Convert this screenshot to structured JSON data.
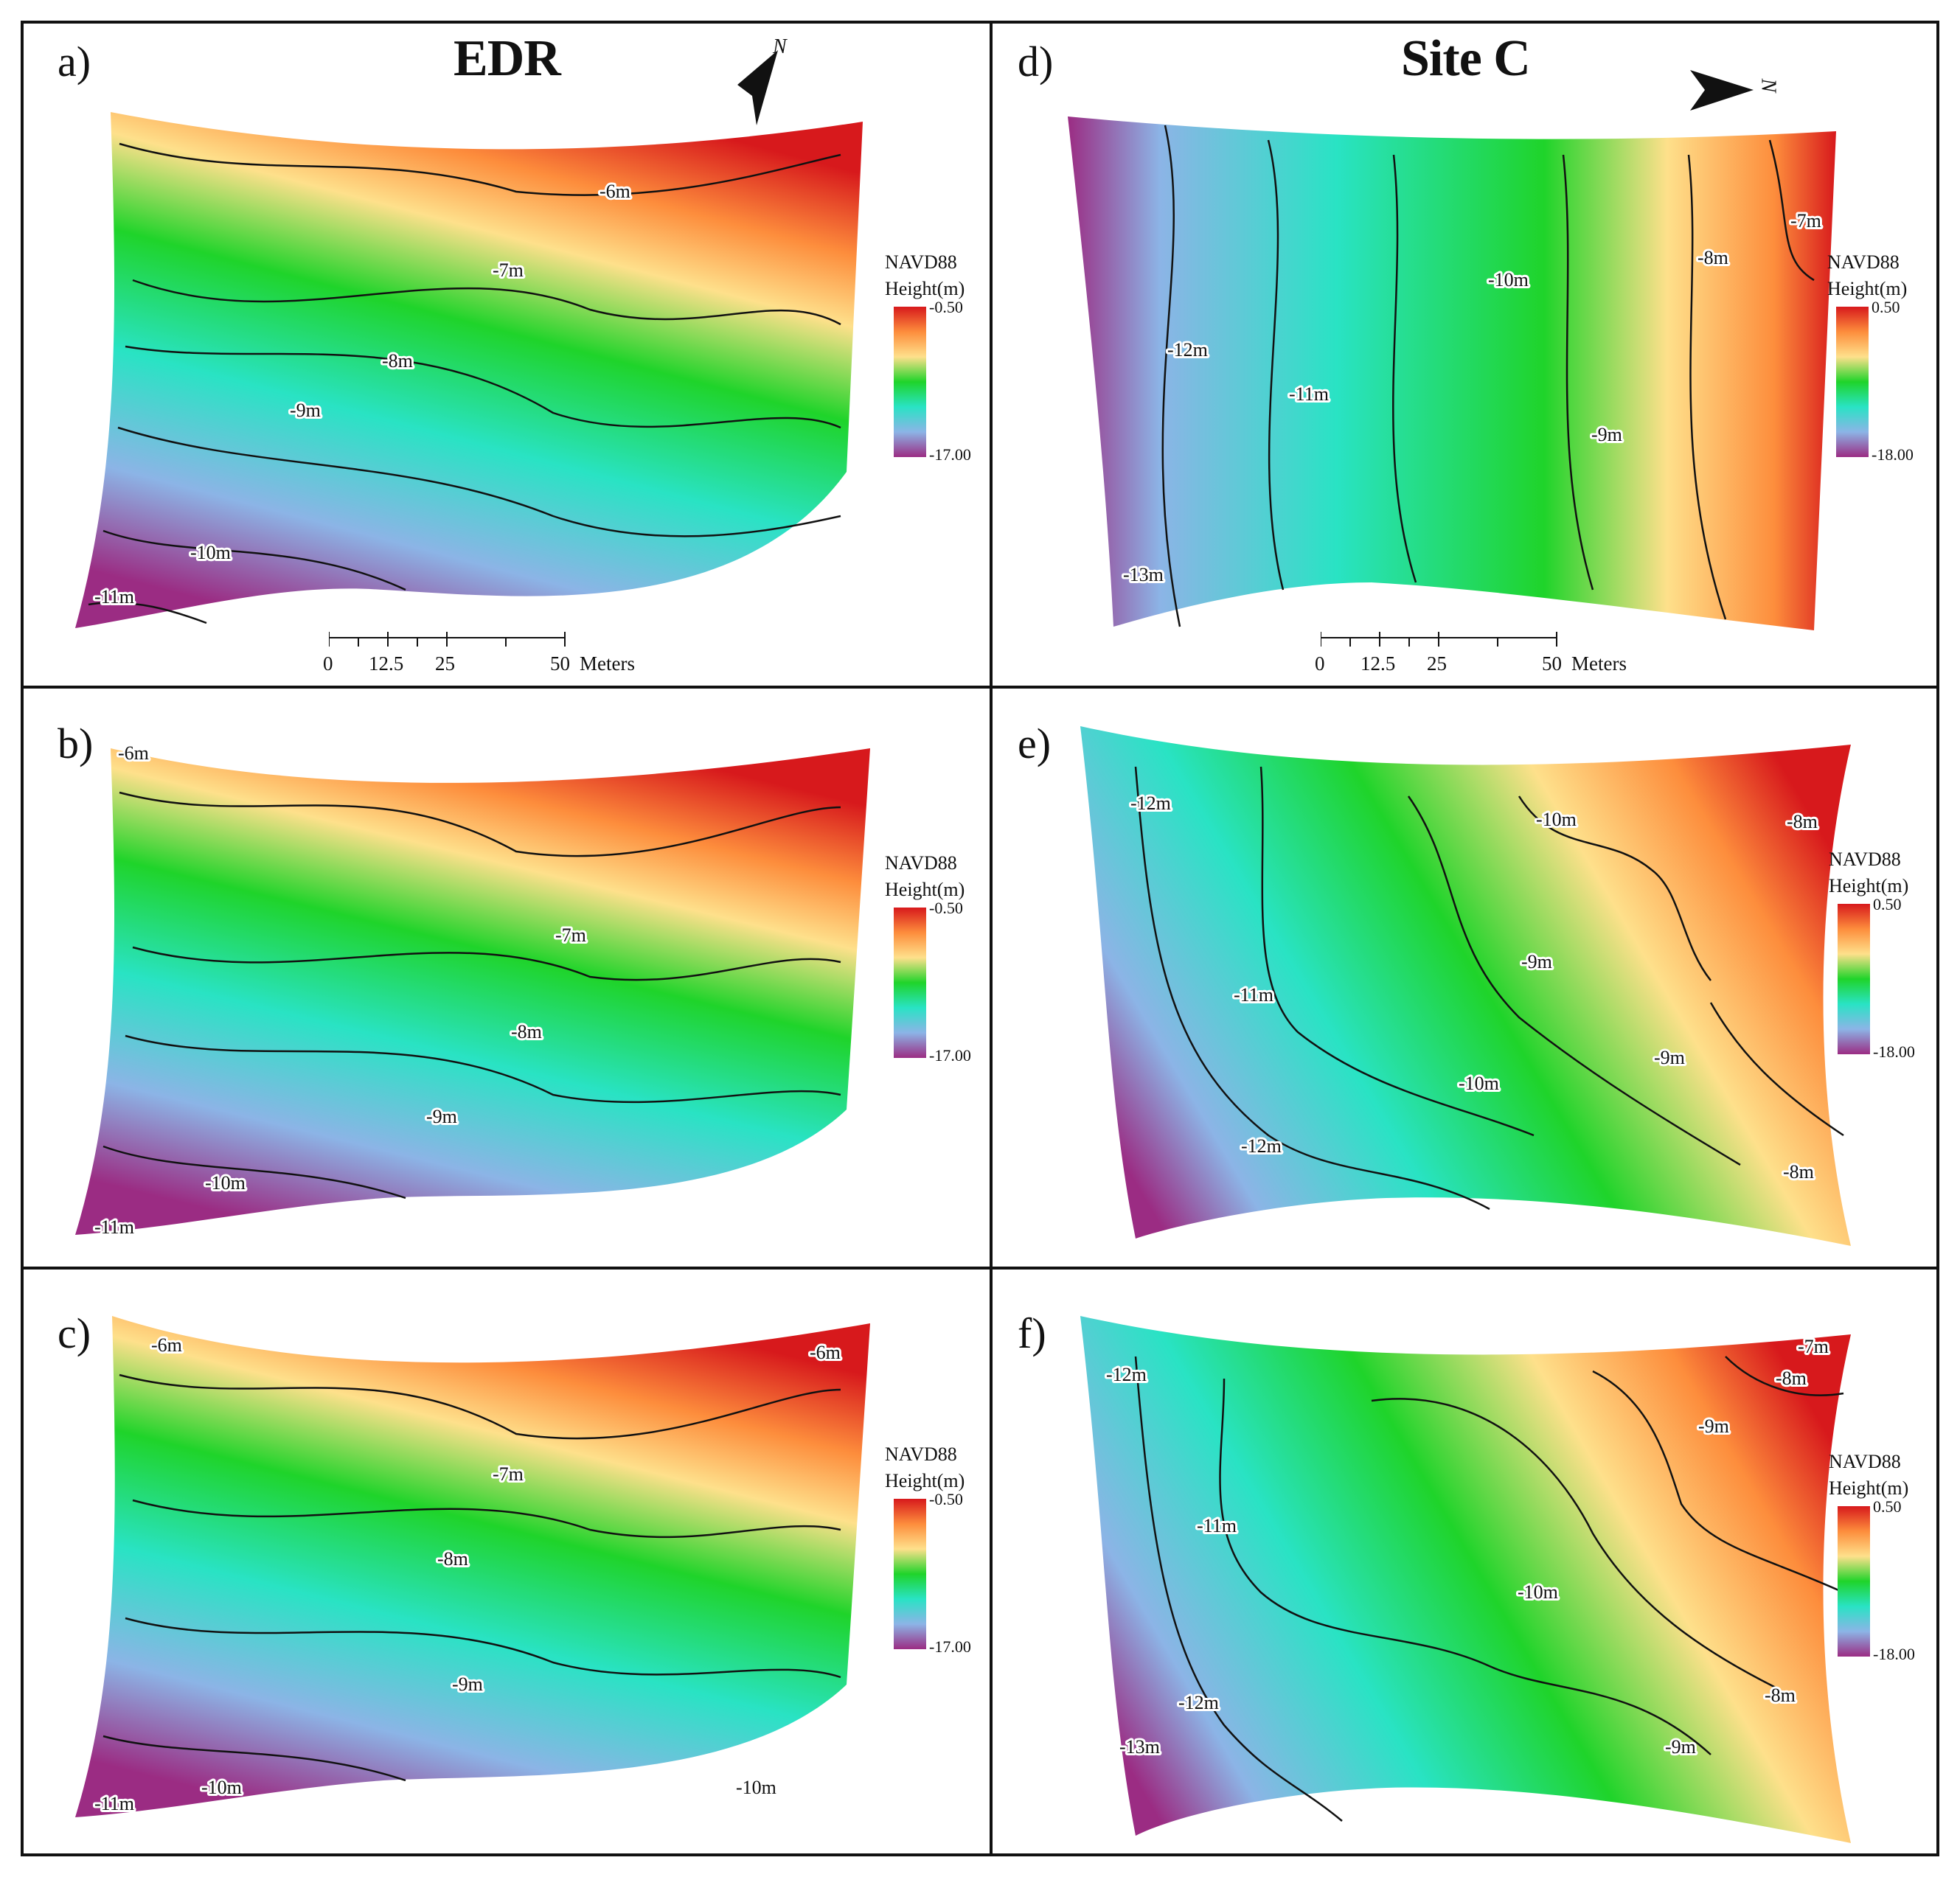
{
  "figure": {
    "columns": [
      {
        "title": "EDR"
      },
      {
        "title": "Site C"
      }
    ],
    "panels": [
      {
        "letter": "a)",
        "site": "EDR",
        "legend": {
          "title_line1": "NAVD88",
          "title_line2": "Height(m)",
          "max": "-0.50",
          "min": "-17.00"
        },
        "contour_labels": [
          "-6m",
          "-7m",
          "-8m",
          "-9m",
          "-10m",
          "-11m"
        ],
        "scale_bar": {
          "ticks": [
            "0",
            "12.5",
            "25",
            "50"
          ],
          "unit": "Meters"
        },
        "north_arrow": {
          "label": "N",
          "icon": "north-arrow-icon"
        }
      },
      {
        "letter": "b)",
        "site": "EDR",
        "legend": {
          "title_line1": "NAVD88",
          "title_line2": "Height(m)",
          "max": "-0.50",
          "min": "-17.00"
        },
        "contour_labels": [
          "-6m",
          "-7m",
          "-8m",
          "-9m",
          "-10m",
          "-11m"
        ]
      },
      {
        "letter": "c)",
        "site": "EDR",
        "legend": {
          "title_line1": "NAVD88",
          "title_line2": "Height(m)",
          "max": "-0.50",
          "min": "-17.00"
        },
        "contour_labels": [
          "-6m",
          "-6m",
          "-7m",
          "-8m",
          "-9m",
          "-10m",
          "-10m",
          "-11m"
        ]
      },
      {
        "letter": "d)",
        "site": "Site C",
        "legend": {
          "title_line1": "NAVD88",
          "title_line2": "Height(m)",
          "max": "0.50",
          "min": "-18.00"
        },
        "contour_labels": [
          "-7m",
          "-8m",
          "-9m",
          "-10m",
          "-11m",
          "-12m",
          "-13m"
        ],
        "scale_bar": {
          "ticks": [
            "0",
            "12.5",
            "25",
            "50"
          ],
          "unit": "Meters"
        },
        "north_arrow": {
          "label": "N",
          "icon": "north-arrow-icon"
        }
      },
      {
        "letter": "e)",
        "site": "Site C",
        "legend": {
          "title_line1": "NAVD88",
          "title_line2": "Height(m)",
          "max": "0.50",
          "min": "-18.00"
        },
        "contour_labels": [
          "-8m",
          "-8m",
          "-9m",
          "-9m",
          "-10m",
          "-10m",
          "-11m",
          "-12m",
          "-12m"
        ]
      },
      {
        "letter": "f)",
        "site": "Site C",
        "legend": {
          "title_line1": "NAVD88",
          "title_line2": "Height(m)",
          "max": "0.50",
          "min": "-18.00"
        },
        "contour_labels": [
          "-7m",
          "-8m",
          "-8m",
          "-9m",
          "-9m",
          "-10m",
          "-11m",
          "-12m",
          "-12m",
          "-13m"
        ]
      }
    ],
    "colormap": [
      "#d7191c",
      "#fd8d3c",
      "#fee08b",
      "#1fd42a",
      "#29e3c4",
      "#8cb4e6",
      "#9b2c83"
    ]
  }
}
